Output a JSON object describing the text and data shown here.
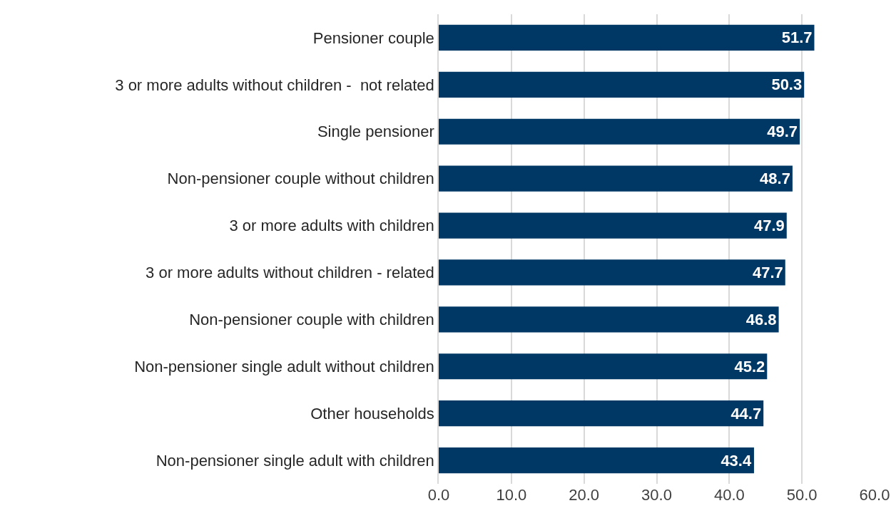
{
  "chart_data": {
    "type": "bar",
    "orientation": "horizontal",
    "categories": [
      "Pensioner couple",
      "3 or more adults without children -  not related",
      "Single pensioner",
      "Non-pensioner couple without children",
      "3 or more adults with children",
      "3 or more adults without children - related",
      "Non-pensioner couple with children",
      "Non-pensioner single adult without children",
      "Other households",
      "Non-pensioner single adult with children"
    ],
    "values": [
      51.7,
      50.3,
      49.7,
      48.7,
      47.9,
      47.7,
      46.8,
      45.2,
      44.7,
      43.4
    ],
    "color": "#003865",
    "xlim": [
      0,
      60
    ],
    "xticks": [
      {
        "value": 0,
        "label": "0.0"
      },
      {
        "value": 10,
        "label": "10.0"
      },
      {
        "value": 20,
        "label": "20.0"
      },
      {
        "value": 30,
        "label": "30.0"
      },
      {
        "value": 40,
        "label": "40.0"
      },
      {
        "value": 50,
        "label": "50.0"
      },
      {
        "value": 60,
        "label": "60.0"
      }
    ],
    "grid": "x",
    "data_labels": true
  }
}
